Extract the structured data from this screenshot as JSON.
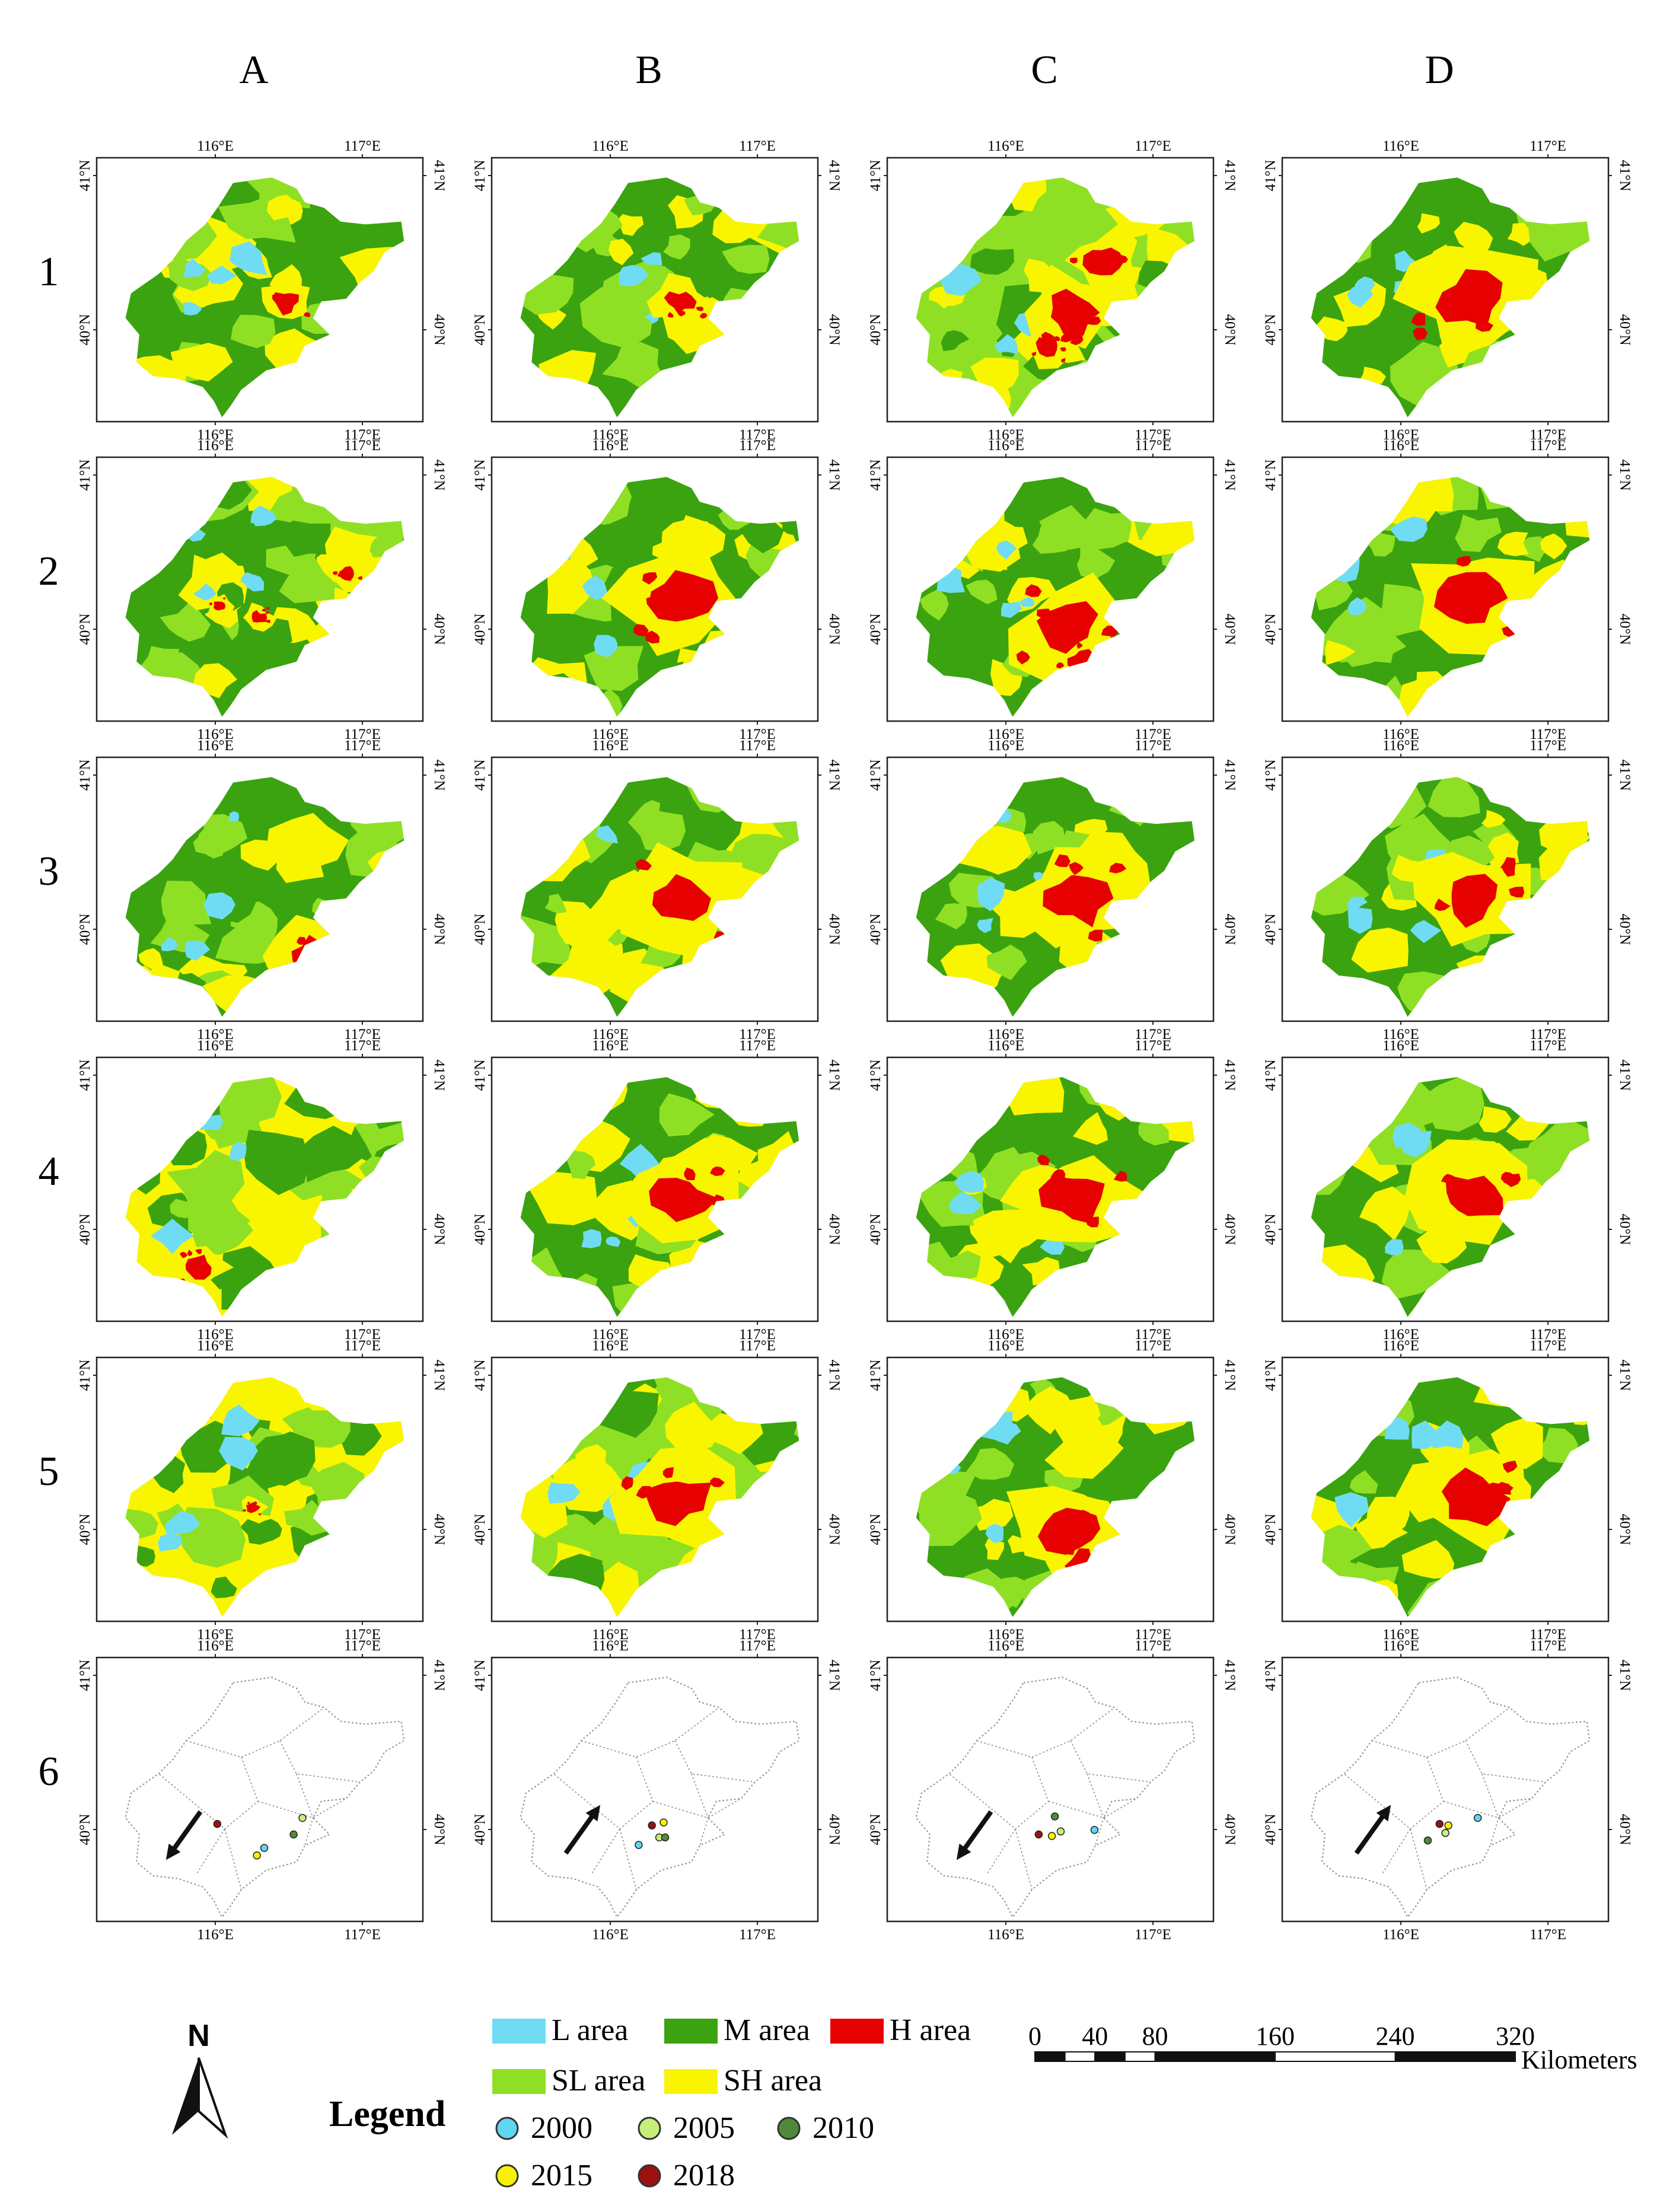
{
  "columns": [
    "A",
    "B",
    "C",
    "D"
  ],
  "rows": [
    "1",
    "2",
    "3",
    "4",
    "5",
    "6"
  ],
  "axis_ticks": {
    "lon": [
      "116°E",
      "117°E"
    ],
    "lat": [
      "41°N",
      "40°N"
    ]
  },
  "palette": {
    "L area": "#6fdcf4",
    "M area": "#3aa30f",
    "H area": "#e60000",
    "SL area": "#8fe024",
    "SH area": "#f9f500",
    "boundary": "#9a9a9a"
  },
  "panels": [
    {
      "id": "A1",
      "dominant": "M area",
      "h_core": "small central"
    },
    {
      "id": "B1",
      "dominant": "M area",
      "h_core": "small central"
    },
    {
      "id": "C1",
      "dominant": "SL area",
      "h_core": "central band"
    },
    {
      "id": "D1",
      "dominant": "M area",
      "h_core": "central"
    },
    {
      "id": "A2",
      "dominant": "mixed",
      "h_core": "scattered"
    },
    {
      "id": "B2",
      "dominant": "mixed",
      "h_core": "central"
    },
    {
      "id": "C2",
      "dominant": "M area",
      "h_core": "southern central"
    },
    {
      "id": "D2",
      "dominant": "M area",
      "h_core": "central"
    },
    {
      "id": "A3",
      "dominant": "mixed",
      "h_core": "south-east"
    },
    {
      "id": "B3",
      "dominant": "M area",
      "h_core": "central"
    },
    {
      "id": "C3",
      "dominant": "M area",
      "h_core": "central"
    },
    {
      "id": "D3",
      "dominant": "M area",
      "h_core": "central"
    },
    {
      "id": "A4",
      "dominant": "SH area",
      "h_core": "south-west"
    },
    {
      "id": "B4",
      "dominant": "M area",
      "h_core": "central"
    },
    {
      "id": "C4",
      "dominant": "M area",
      "h_core": "central"
    },
    {
      "id": "D4",
      "dominant": "M area",
      "h_core": "central"
    },
    {
      "id": "A5",
      "dominant": "SH area",
      "h_core": "minor"
    },
    {
      "id": "B5",
      "dominant": "SL area",
      "h_core": "central"
    },
    {
      "id": "C5",
      "dominant": "M area",
      "h_core": "southern central"
    },
    {
      "id": "D5",
      "dominant": "M area",
      "h_core": "central"
    }
  ],
  "centroid_panels": [
    {
      "id": "A6",
      "arrow": "south-west",
      "points": [
        {
          "year": "2000",
          "lon": 116.42,
          "lat": 39.87
        },
        {
          "year": "2005",
          "lon": 116.68,
          "lat": 40.07
        },
        {
          "year": "2010",
          "lon": 116.62,
          "lat": 39.96
        },
        {
          "year": "2015",
          "lon": 116.37,
          "lat": 39.82
        },
        {
          "year": "2018",
          "lon": 116.1,
          "lat": 40.03
        }
      ]
    },
    {
      "id": "B6",
      "arrow": "north-east",
      "points": [
        {
          "year": "2000",
          "lon": 116.28,
          "lat": 39.89
        },
        {
          "year": "2005",
          "lon": 116.42,
          "lat": 39.94
        },
        {
          "year": "2010",
          "lon": 116.46,
          "lat": 39.94
        },
        {
          "year": "2015",
          "lon": 116.45,
          "lat": 40.04
        },
        {
          "year": "2018",
          "lon": 116.37,
          "lat": 40.02
        }
      ]
    },
    {
      "id": "C6",
      "arrow": "south-west",
      "points": [
        {
          "year": "2000",
          "lon": 116.69,
          "lat": 39.99
        },
        {
          "year": "2005",
          "lon": 116.46,
          "lat": 39.98
        },
        {
          "year": "2010",
          "lon": 116.42,
          "lat": 40.08
        },
        {
          "year": "2015",
          "lon": 116.4,
          "lat": 39.95
        },
        {
          "year": "2018",
          "lon": 116.31,
          "lat": 39.96
        }
      ]
    },
    {
      "id": "D6",
      "arrow": "north-east",
      "points": [
        {
          "year": "2000",
          "lon": 116.61,
          "lat": 40.07
        },
        {
          "year": "2005",
          "lon": 116.39,
          "lat": 39.97
        },
        {
          "year": "2010",
          "lon": 116.27,
          "lat": 39.92
        },
        {
          "year": "2015",
          "lon": 116.41,
          "lat": 40.02
        },
        {
          "year": "2018",
          "lon": 116.35,
          "lat": 40.03
        }
      ]
    }
  ],
  "legend": {
    "title": "Legend",
    "classes": [
      {
        "label": "L area",
        "color": "#6fdcf4"
      },
      {
        "label": "M area",
        "color": "#3aa30f"
      },
      {
        "label": "H area",
        "color": "#e60000"
      },
      {
        "label": "SL area",
        "color": "#8fe024"
      },
      {
        "label": "SH area",
        "color": "#f9f500"
      }
    ],
    "years": [
      {
        "label": "2000",
        "color": "#5fd6f2"
      },
      {
        "label": "2005",
        "color": "#c5ef7a"
      },
      {
        "label": "2010",
        "color": "#4f8a3a"
      },
      {
        "label": "2015",
        "color": "#f7f200"
      },
      {
        "label": "2018",
        "color": "#9b1010"
      }
    ]
  },
  "north_arrow": "N",
  "scale_bar": {
    "ticks": [
      "0",
      "40",
      "80",
      "160",
      "240",
      "320"
    ],
    "unit": "Kilometers"
  }
}
